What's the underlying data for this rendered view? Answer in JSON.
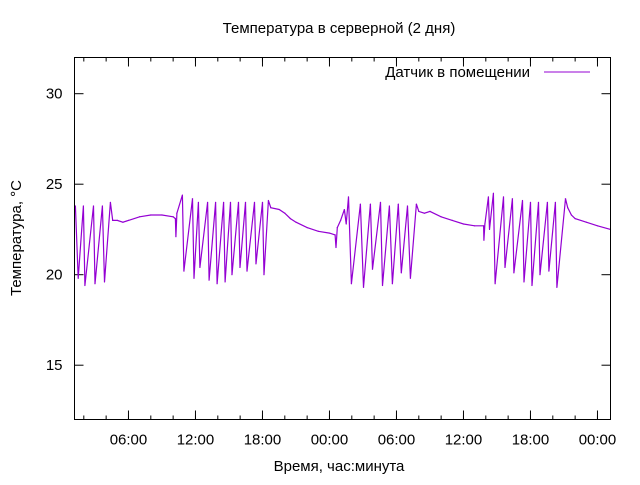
{
  "chart_data": {
    "type": "line",
    "title": "Температура в серверной (2 дня)",
    "xlabel": "Время, час:минута",
    "ylabel": "Температура, °C",
    "ylim": [
      12,
      32
    ],
    "yticks": [
      15,
      20,
      25,
      30
    ],
    "xlim": [
      "1 01:10",
      "3 01:10"
    ],
    "xticks": [
      "1 06:00",
      "1 12:00",
      "1 18:00",
      "2 00:00",
      "2 06:00",
      "2 12:00",
      "2 18:00",
      "3 00:00"
    ],
    "xtick_labels": [
      "06:00",
      "12:00",
      "18:00",
      "00:00",
      "06:00",
      "12:00",
      "18:00",
      "00:00"
    ],
    "minor_tick_hours": 2,
    "grid": false,
    "legend_position": "top-right",
    "series": [
      {
        "name": "Датчик в помещении",
        "color": "#9400d3",
        "points": [
          [
            "1 01:10",
            23.6
          ],
          [
            "1 01:15",
            23.8
          ],
          [
            "1 01:30",
            19.8
          ],
          [
            "1 01:58",
            23.8
          ],
          [
            "1 02:06",
            19.4
          ],
          [
            "1 02:52",
            23.8
          ],
          [
            "1 03:00",
            19.5
          ],
          [
            "1 03:40",
            23.8
          ],
          [
            "1 03:51",
            19.6
          ],
          [
            "1 04:23",
            24.0
          ],
          [
            "1 04:35",
            23.0
          ],
          [
            "1 05:00",
            23.0
          ],
          [
            "1 05:30",
            22.9
          ],
          [
            "1 06:00",
            23.0
          ],
          [
            "1 07:00",
            23.2
          ],
          [
            "1 08:00",
            23.3
          ],
          [
            "1 09:00",
            23.3
          ],
          [
            "1 10:00",
            23.2
          ],
          [
            "1 10:12",
            23.1
          ],
          [
            "1 10:15",
            22.1
          ],
          [
            "1 10:20",
            23.4
          ],
          [
            "1 10:50",
            24.4
          ],
          [
            "1 10:58",
            20.2
          ],
          [
            "1 11:44",
            24.2
          ],
          [
            "1 11:52",
            19.8
          ],
          [
            "1 12:16",
            24.0
          ],
          [
            "1 12:24",
            20.4
          ],
          [
            "1 13:05",
            24.0
          ],
          [
            "1 13:13",
            19.7
          ],
          [
            "1 13:48",
            24.0
          ],
          [
            "1 13:56",
            19.5
          ],
          [
            "1 14:31",
            24.0
          ],
          [
            "1 14:39",
            19.6
          ],
          [
            "1 15:08",
            24.0
          ],
          [
            "1 15:16",
            20.0
          ],
          [
            "1 15:51",
            24.0
          ],
          [
            "1 15:59",
            20.4
          ],
          [
            "1 16:29",
            24.0
          ],
          [
            "1 16:37",
            20.2
          ],
          [
            "1 17:17",
            24.0
          ],
          [
            "1 17:25",
            20.6
          ],
          [
            "1 18:00",
            24.0
          ],
          [
            "1 18:08",
            20.0
          ],
          [
            "1 18:32",
            24.1
          ],
          [
            "1 18:45",
            23.7
          ],
          [
            "1 19:30",
            23.6
          ],
          [
            "1 20:00",
            23.4
          ],
          [
            "1 20:30",
            23.1
          ],
          [
            "1 21:00",
            22.9
          ],
          [
            "1 22:00",
            22.6
          ],
          [
            "1 23:00",
            22.4
          ],
          [
            "2 00:00",
            22.3
          ],
          [
            "2 00:30",
            22.2
          ],
          [
            "2 00:35",
            21.5
          ],
          [
            "2 00:42",
            22.6
          ],
          [
            "2 01:00",
            23.0
          ],
          [
            "2 01:20",
            23.6
          ],
          [
            "2 01:30",
            22.8
          ],
          [
            "2 01:42",
            24.3
          ],
          [
            "2 01:58",
            19.5
          ],
          [
            "2 02:46",
            23.9
          ],
          [
            "2 03:03",
            19.3
          ],
          [
            "2 03:40",
            23.9
          ],
          [
            "2 03:51",
            20.3
          ],
          [
            "2 04:34",
            24.0
          ],
          [
            "2 04:45",
            19.4
          ],
          [
            "2 05:22",
            23.8
          ],
          [
            "2 05:38",
            19.5
          ],
          [
            "2 06:10",
            23.9
          ],
          [
            "2 06:26",
            20.1
          ],
          [
            "2 06:59",
            23.8
          ],
          [
            "2 07:15",
            19.8
          ],
          [
            "2 07:47",
            23.9
          ],
          [
            "2 08:00",
            23.5
          ],
          [
            "2 08:30",
            23.4
          ],
          [
            "2 09:00",
            23.5
          ],
          [
            "2 10:00",
            23.2
          ],
          [
            "2 11:00",
            23.0
          ],
          [
            "2 12:00",
            22.8
          ],
          [
            "2 13:00",
            22.7
          ],
          [
            "2 13:48",
            22.7
          ],
          [
            "2 13:50",
            21.9
          ],
          [
            "2 13:55",
            22.8
          ],
          [
            "2 14:14",
            24.3
          ],
          [
            "2 14:20",
            22.5
          ],
          [
            "2 14:41",
            24.5
          ],
          [
            "2 14:50",
            19.5
          ],
          [
            "2 15:35",
            24.3
          ],
          [
            "2 15:43",
            20.4
          ],
          [
            "2 16:23",
            24.2
          ],
          [
            "2 16:31",
            20.1
          ],
          [
            "2 17:17",
            24.1
          ],
          [
            "2 17:25",
            19.6
          ],
          [
            "2 18:00",
            24.0
          ],
          [
            "2 18:08",
            19.4
          ],
          [
            "2 18:43",
            24.0
          ],
          [
            "2 18:51",
            20.0
          ],
          [
            "2 19:31",
            24.0
          ],
          [
            "2 19:39",
            20.2
          ],
          [
            "2 20:14",
            24.0
          ],
          [
            "2 20:22",
            19.3
          ],
          [
            "2 21:08",
            24.2
          ],
          [
            "2 21:20",
            23.7
          ],
          [
            "2 21:40",
            23.3
          ],
          [
            "2 22:00",
            23.1
          ],
          [
            "2 23:00",
            22.9
          ],
          [
            "3 00:00",
            22.7
          ],
          [
            "3 01:10",
            22.5
          ]
        ]
      }
    ]
  }
}
